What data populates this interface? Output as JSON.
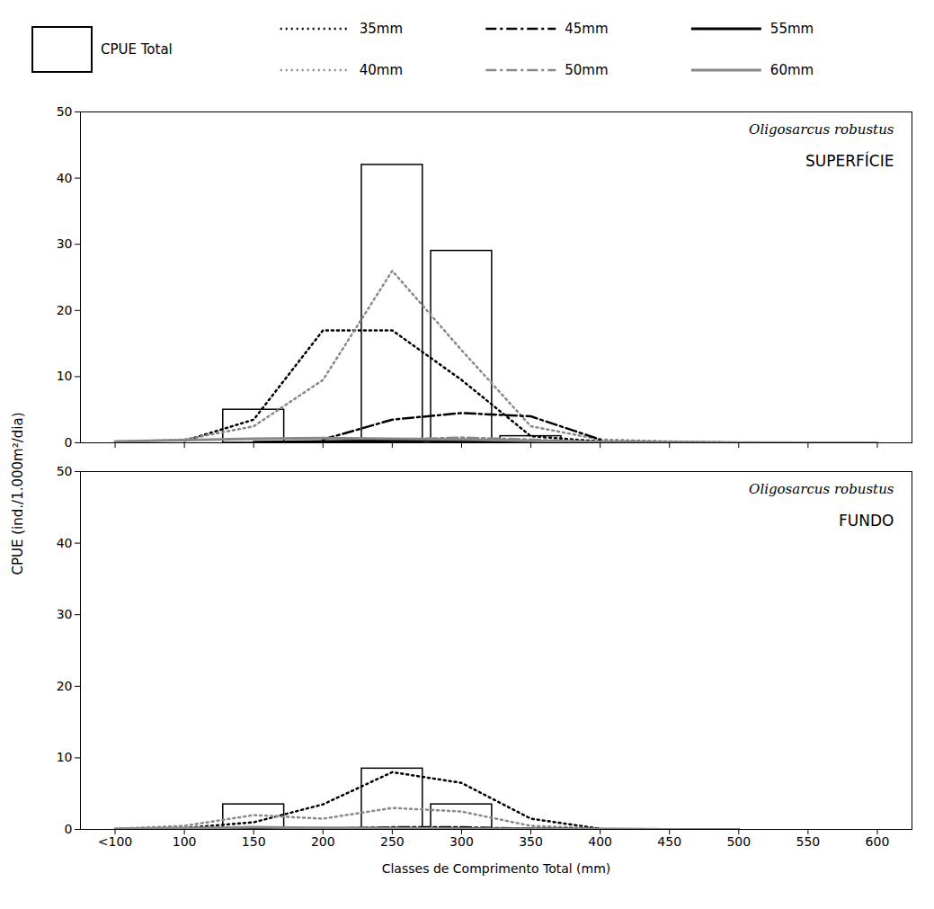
{
  "chart_data": [
    {
      "type": "bar",
      "ylabel": "CPUE (ind./1.000m²/dia)",
      "annotations": [
        "Oligosarcus robustus",
        "SUPERFÍCIE"
      ],
      "xlim": [
        25,
        625
      ],
      "xticks": [
        {
          "value": 50,
          "label": "<100"
        },
        100,
        150,
        200,
        250,
        300,
        350,
        400,
        450,
        500,
        550,
        600
      ],
      "ylim": [
        0,
        50
      ],
      "yticks": [
        0,
        10,
        20,
        30,
        40,
        50
      ],
      "tick_labels": "y",
      "series": [
        {
          "name": "CPUE Total",
          "type": "bar",
          "color": "#ffffff",
          "x": [
            150,
            250,
            300,
            350
          ],
          "values": [
            5.0,
            42.0,
            29.0,
            1.0
          ]
        },
        {
          "name": "35mm",
          "type": "line",
          "color": "#000000",
          "line_style": "dotted",
          "x": [
            100,
            150,
            200,
            250,
            300,
            350,
            400,
            450
          ],
          "values": [
            0.3,
            3.5,
            17.0,
            17.0,
            9.5,
            1.0,
            0.2,
            0.0
          ]
        },
        {
          "name": "40mm",
          "type": "line",
          "color": "#888888",
          "line_style": "dotted",
          "x": [
            50,
            100,
            150,
            200,
            250,
            300,
            350,
            400,
            450,
            500,
            550
          ],
          "values": [
            0.1,
            0.5,
            2.5,
            9.5,
            26.0,
            14.0,
            2.5,
            0.5,
            0.2,
            0.05,
            0.0
          ]
        },
        {
          "name": "45mm",
          "type": "line",
          "color": "#000000",
          "line_style": "dashdot",
          "x": [
            200,
            250,
            300,
            350,
            400
          ],
          "values": [
            0.5,
            3.5,
            4.5,
            4.0,
            0.5
          ]
        },
        {
          "name": "50mm",
          "type": "line",
          "color": "#888888",
          "line_style": "dashdot",
          "x": [
            200,
            250,
            300,
            350,
            400,
            450
          ],
          "values": [
            0.1,
            0.5,
            0.8,
            0.5,
            0.1,
            0.0
          ]
        },
        {
          "name": "55mm",
          "type": "line",
          "color": "#000000",
          "line_style": "solid",
          "x": [
            150,
            200,
            250,
            300,
            350,
            400,
            450,
            500
          ],
          "values": [
            0.1,
            0.2,
            0.3,
            0.3,
            0.2,
            0.1,
            0.05,
            0.0
          ]
        },
        {
          "name": "60mm",
          "type": "line",
          "color": "#888888",
          "line_style": "solid",
          "x": [
            50,
            100,
            150,
            200,
            250,
            300,
            350,
            400,
            450,
            500,
            550,
            600
          ],
          "values": [
            0.2,
            0.4,
            0.6,
            0.7,
            0.6,
            0.5,
            0.3,
            0.15,
            0.07,
            0.03,
            0.01,
            0.0
          ]
        }
      ]
    },
    {
      "type": "bar",
      "xlabel": "Classes de Comprimento Total (mm)",
      "annotations": [
        "Oligosarcus robustus",
        "FUNDO"
      ],
      "xlim": [
        25,
        625
      ],
      "xticks": [
        {
          "value": 50,
          "label": "<100"
        },
        100,
        150,
        200,
        250,
        300,
        350,
        400,
        450,
        500,
        550,
        600
      ],
      "ylim": [
        0,
        50
      ],
      "yticks": [
        0,
        10,
        20,
        30,
        40,
        50
      ],
      "series": [
        {
          "name": "CPUE Total",
          "type": "bar",
          "color": "#ffffff",
          "x": [
            150,
            250,
            300
          ],
          "values": [
            3.5,
            8.5,
            3.5
          ]
        },
        {
          "name": "35mm",
          "type": "line",
          "color": "#000000",
          "line_style": "dotted",
          "x": [
            100,
            150,
            200,
            250,
            300,
            350,
            400
          ],
          "values": [
            0.2,
            1.0,
            3.5,
            8.0,
            6.5,
            1.5,
            0.1
          ]
        },
        {
          "name": "40mm",
          "type": "line",
          "color": "#888888",
          "line_style": "dotted",
          "x": [
            50,
            100,
            150,
            200,
            250,
            300,
            350,
            400
          ],
          "values": [
            0.1,
            0.5,
            2.0,
            1.5,
            3.0,
            2.5,
            0.5,
            0.1
          ]
        },
        {
          "name": "45mm",
          "type": "line",
          "color": "#000000",
          "line_style": "dashdot",
          "x": [
            150,
            200,
            250,
            300,
            350,
            400
          ],
          "values": [
            0.0,
            0.1,
            0.3,
            0.3,
            0.1,
            0.0
          ]
        },
        {
          "name": "50mm",
          "type": "line",
          "color": "#888888",
          "line_style": "dashdot",
          "x": [
            150,
            200,
            250,
            300,
            350,
            400
          ],
          "values": [
            0.0,
            0.05,
            0.1,
            0.1,
            0.05,
            0.0
          ]
        },
        {
          "name": "55mm",
          "type": "line",
          "color": "#000000",
          "line_style": "solid",
          "x": [
            100,
            150,
            200,
            250,
            300,
            350,
            400,
            450,
            500
          ],
          "values": [
            0.05,
            0.1,
            0.15,
            0.15,
            0.1,
            0.05,
            0.02,
            0.01,
            0.0
          ]
        },
        {
          "name": "60mm",
          "type": "line",
          "color": "#888888",
          "line_style": "solid",
          "x": [
            50,
            100,
            150,
            200,
            250,
            300,
            350,
            400,
            450,
            500
          ],
          "values": [
            0.1,
            0.2,
            0.3,
            0.2,
            0.15,
            0.1,
            0.05,
            0.02,
            0.01,
            0.0
          ]
        }
      ]
    }
  ]
}
